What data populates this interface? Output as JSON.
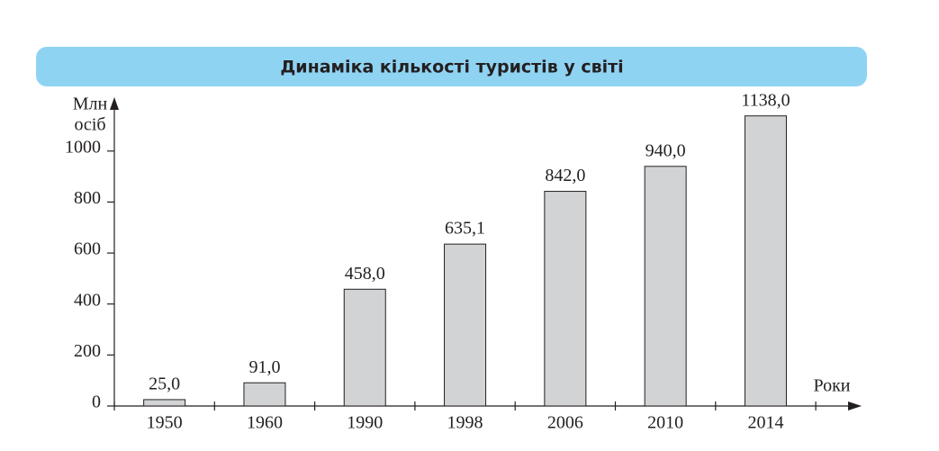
{
  "chart_data": {
    "type": "bar",
    "title": "Динаміка кількості туристів у світі",
    "ylabel": [
      "Млн",
      "осіб"
    ],
    "xlabel": "Роки",
    "categories": [
      "1950",
      "1960",
      "1990",
      "1998",
      "2006",
      "2010",
      "2014"
    ],
    "values": [
      25,
      91,
      458,
      635.1,
      842,
      940,
      1138
    ],
    "value_labels": [
      "25,0",
      "91,0",
      "458,0",
      "635,1",
      "842,0",
      "940,0",
      "1138,0"
    ],
    "color": "#d1d3d4",
    "ylim": [
      0,
      1190
    ],
    "yticks": [
      0,
      200,
      400,
      600,
      800,
      1000
    ]
  }
}
